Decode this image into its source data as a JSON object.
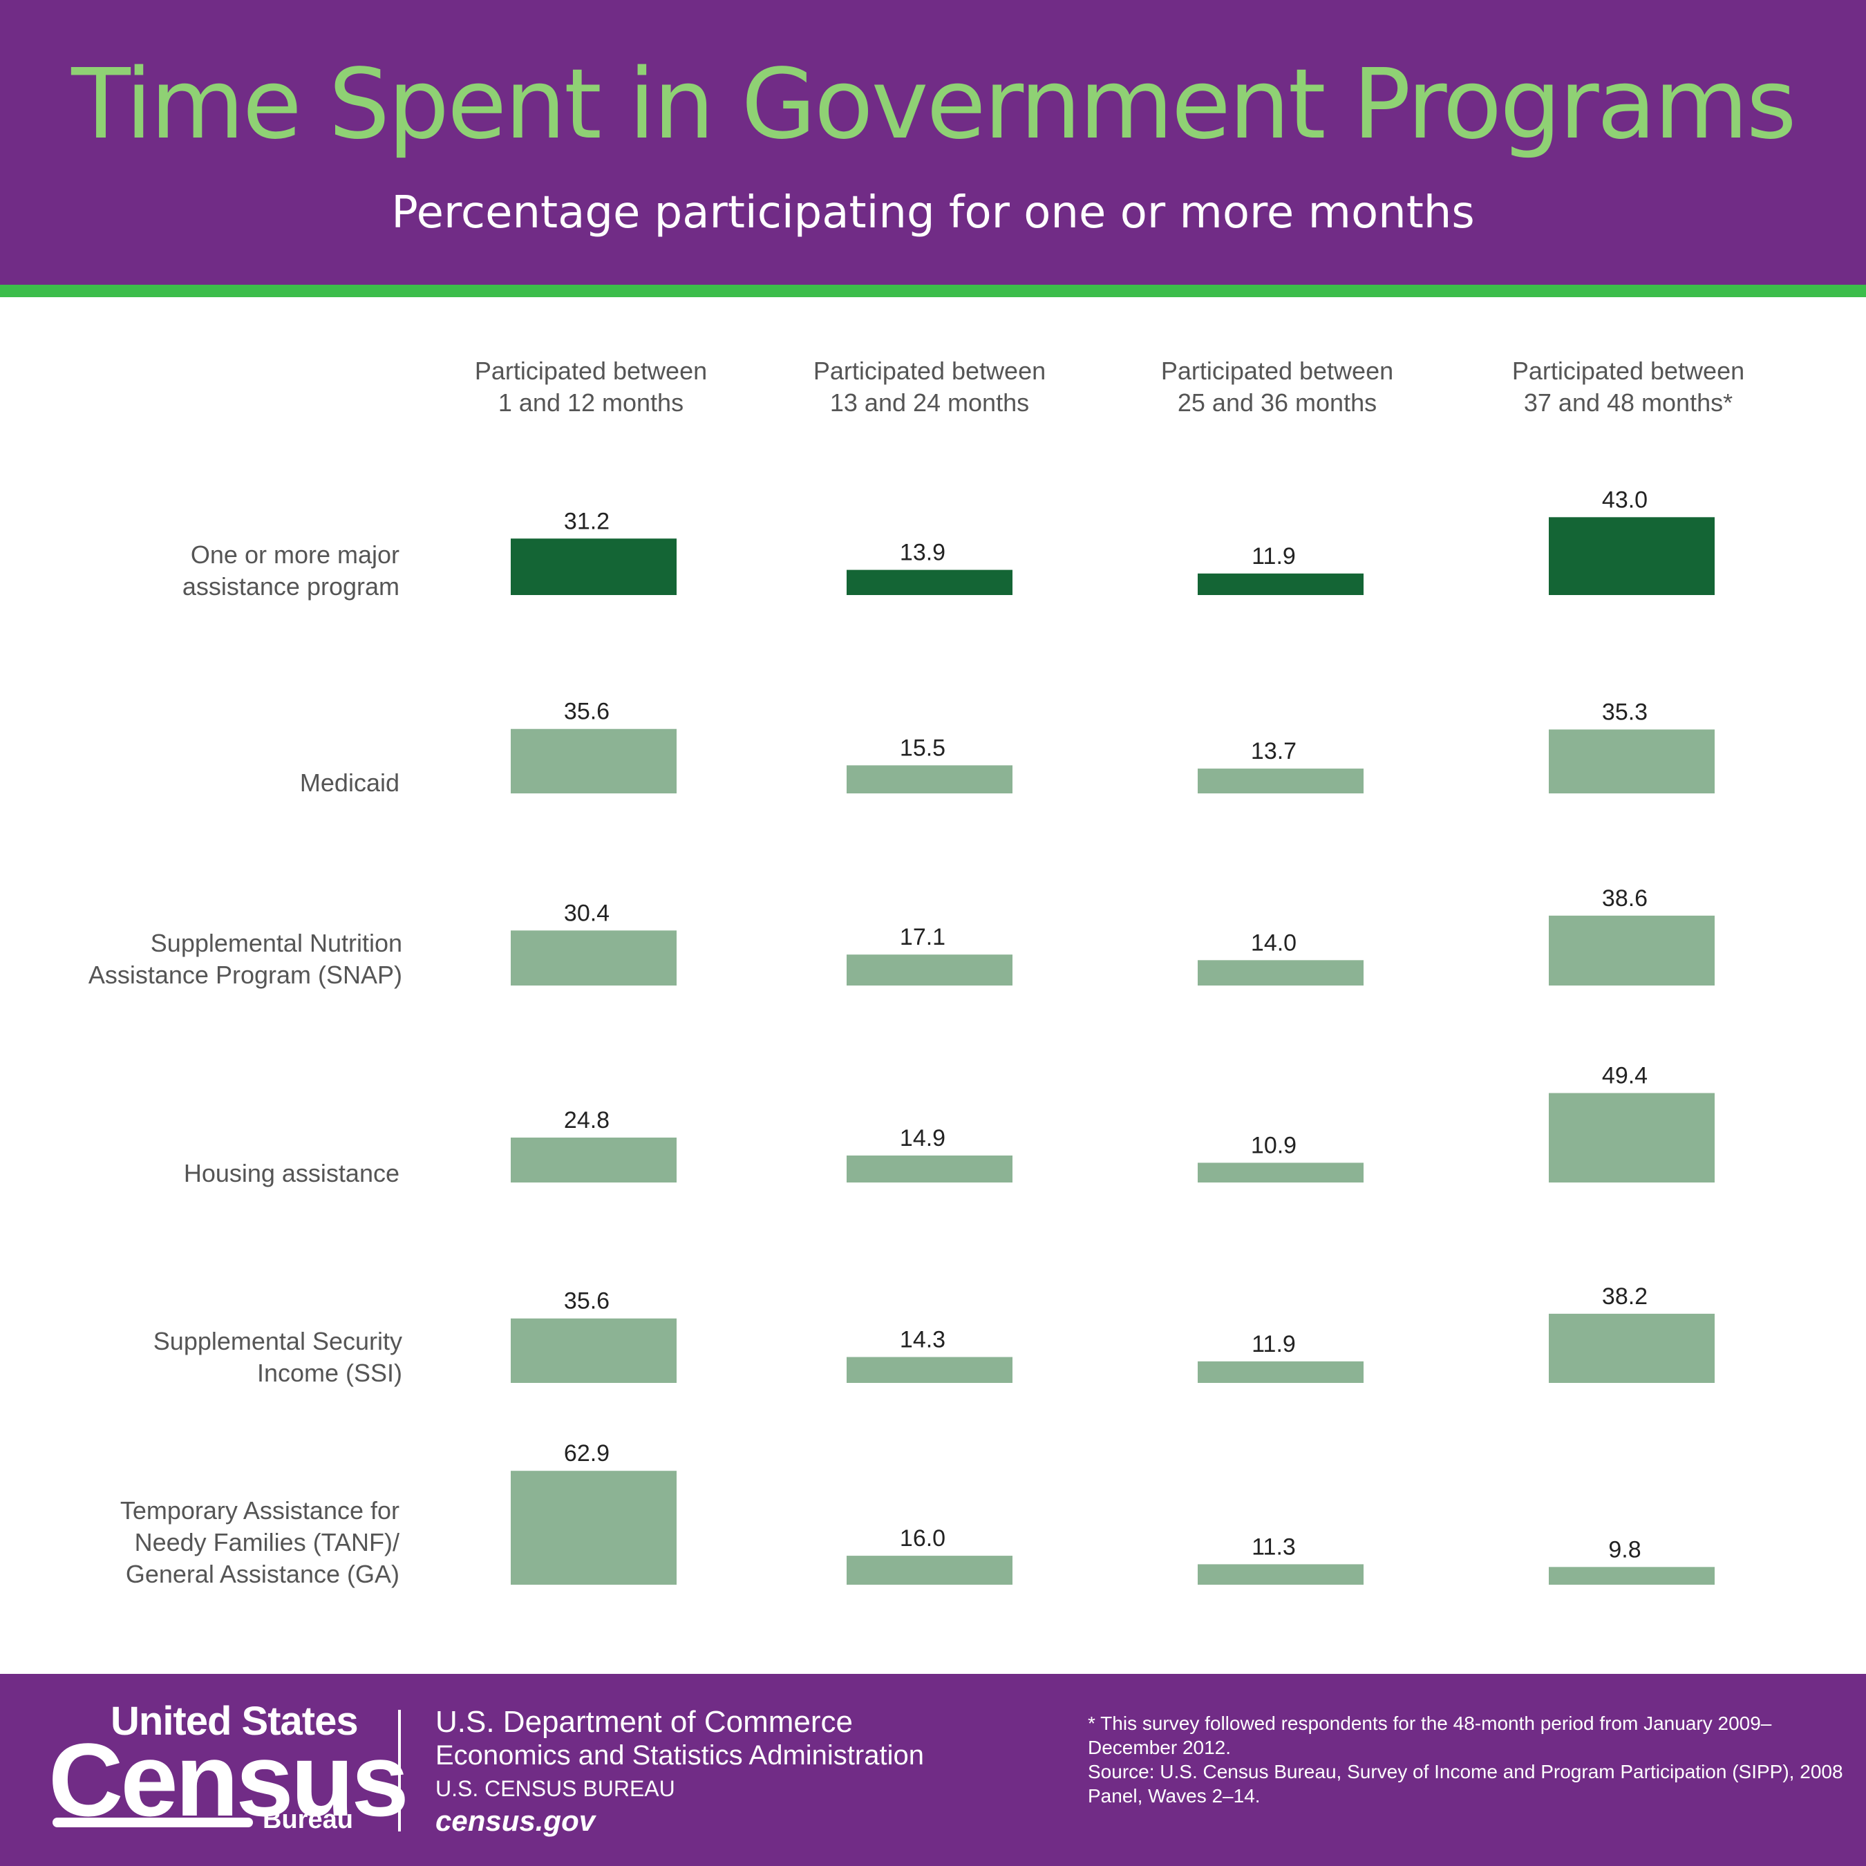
{
  "header": {
    "title": "Time Spent in Government Programs",
    "subtitle": "Percentage participating for one or more months"
  },
  "colors": {
    "header_bg": "#712c86",
    "title": "#8fd174",
    "stripe": "#3cbd4b",
    "bar_dark": "#146535",
    "bar_light": "#8cb394"
  },
  "chart_data": {
    "type": "bar",
    "title": "Time Spent in Government Programs",
    "subtitle": "Percentage participating for one or more months",
    "categories": [
      "Participated between\n1 and 12 months",
      "Participated between\n13 and 24 months",
      "Participated between\n25 and 36 months",
      "Participated between\n37 and 48 months*"
    ],
    "series": [
      {
        "name": "One or more major\nassistance program",
        "values": [
          31.2,
          13.9,
          11.9,
          43.0
        ],
        "color": "#146535"
      },
      {
        "name": "Medicaid",
        "values": [
          35.6,
          15.5,
          13.7,
          35.3
        ],
        "color": "#8cb394"
      },
      {
        "name": "Supplemental Nutrition\nAssistance Program (SNAP)",
        "values": [
          30.4,
          17.1,
          14.0,
          38.6
        ],
        "color": "#8cb394"
      },
      {
        "name": "Housing assistance",
        "values": [
          24.8,
          14.9,
          10.9,
          49.4
        ],
        "color": "#8cb394"
      },
      {
        "name": "Supplemental Security\nIncome (SSI)",
        "values": [
          35.6,
          14.3,
          11.9,
          38.2
        ],
        "color": "#8cb394"
      },
      {
        "name": "Temporary Assistance for\nNeedy Families (TANF)/\nGeneral Assistance (GA)",
        "values": [
          62.9,
          16.0,
          11.3,
          9.8
        ],
        "color": "#8cb394"
      }
    ],
    "value_labels": [
      [
        "31.2",
        "13.9",
        "11.9",
        "43.0"
      ],
      [
        "35.6",
        "15.5",
        "13.7",
        "35.3"
      ],
      [
        "30.4",
        "17.1",
        "14.0",
        "38.6"
      ],
      [
        "24.8",
        "14.9",
        "10.9",
        "49.4"
      ],
      [
        "35.6",
        "14.3",
        "11.9",
        "38.2"
      ],
      [
        "62.9",
        "16.0",
        "11.3",
        "9.8"
      ]
    ],
    "ylim": [
      0,
      100
    ],
    "grid": false,
    "legend": "none"
  },
  "footer": {
    "logo_united": "United States",
    "logo_census": "Census",
    "logo_bureau": "Bureau",
    "dept_line1": "U.S. Department of Commerce",
    "dept_line2": "Economics and Statistics Administration",
    "dept_line3": "U.S. CENSUS BUREAU",
    "dept_line4": "census.gov",
    "footnote": "* This survey followed respondents for the 48-month period from January 2009–December 2012.",
    "source": "Source: U.S. Census Bureau, Survey of Income and Program Participation (SIPP), 2008 Panel, Waves 2–14."
  }
}
